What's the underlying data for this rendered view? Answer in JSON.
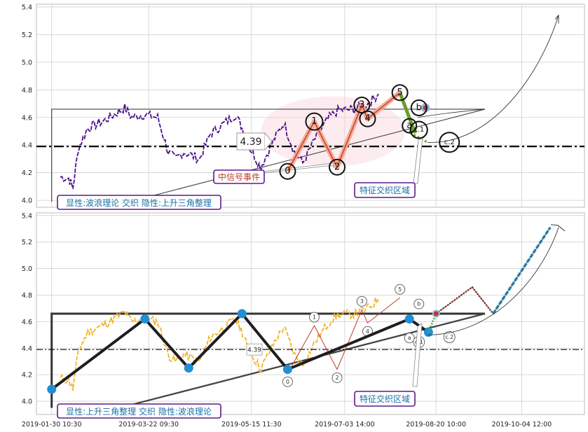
{
  "chart_data": [
    {
      "type": "line",
      "panel": "top",
      "ylim": [
        3.95,
        5.42
      ],
      "yticks": [
        "4.0",
        "4.2",
        "4.4",
        "4.6",
        "4.8",
        "5.0",
        "5.2",
        "5.4"
      ],
      "ytick_values": [
        4.0,
        4.2,
        4.4,
        4.6,
        4.8,
        5.0,
        5.2,
        5.4
      ],
      "grid": true,
      "price_series_color": "#4b0f8a",
      "reference_line": {
        "value": 4.39,
        "label": "4.39",
        "style": "dash-dot"
      },
      "triangle": {
        "top": 4.66,
        "bottom_start": 3.99,
        "color": "#444444"
      },
      "wave_points": [
        {
          "label": "0",
          "x": "2019-06-03",
          "y": 4.21
        },
        {
          "label": "1",
          "x": "2019-06-17",
          "y": 4.57
        },
        {
          "label": "2",
          "x": "2019-06-29",
          "y": 4.24
        },
        {
          "label": "3",
          "x": "2019-07-12",
          "y": 4.69
        },
        {
          "label": "4",
          "x": "2019-07-15",
          "y": 4.59
        },
        {
          "label": "5",
          "x": "2019-08-01",
          "y": 4.78
        },
        {
          "label": "a",
          "x": "2019-08-06",
          "y": 4.54
        },
        {
          "label": "b",
          "x": "2019-08-11",
          "y": 4.67
        },
        {
          "label": "c.1",
          "x": "2019-08-11",
          "y": 4.51
        },
        {
          "label": "c.2",
          "x": "2019-08-27",
          "y": 4.42
        }
      ],
      "annotations": [
        {
          "text": "中信号事件",
          "color": "#c0392b"
        },
        {
          "text": "特征交织区域",
          "color": "#1a6fa8"
        },
        {
          "text": "显性:波浪理论 交织 隐性:上升三角整理",
          "color": "#1a6fa8"
        }
      ]
    },
    {
      "type": "line",
      "panel": "bottom",
      "ylim": [
        3.9,
        5.42
      ],
      "yticks": [
        "4.0",
        "4.2",
        "4.4",
        "4.6",
        "4.8",
        "5.0",
        "5.2",
        "5.4"
      ],
      "ytick_values": [
        4.0,
        4.2,
        4.4,
        4.6,
        4.8,
        5.0,
        5.2,
        5.4
      ],
      "xticks": [
        "2019-01-30 10:30",
        "2019-03-22 09:30",
        "2019-05-15 11:30",
        "2019-07-03 14:00",
        "2019-08-20 10:00",
        "2019-10-04 12:00"
      ],
      "grid": true,
      "price_series_color": "#f0b429",
      "reference_line": {
        "value": 4.39,
        "label": "4.39",
        "style": "dash-dot"
      },
      "triangle_points": [
        {
          "x": "2019-01-30",
          "y": 4.09
        },
        {
          "x": "2019-03-20",
          "y": 4.62
        },
        {
          "x": "2019-04-12",
          "y": 4.25
        },
        {
          "x": "2019-05-10",
          "y": 4.66
        },
        {
          "x": "2019-06-03",
          "y": 4.24
        },
        {
          "x": "2019-08-06",
          "y": 4.62
        },
        {
          "x": "2019-08-16",
          "y": 4.52
        }
      ],
      "projection": [
        {
          "x": "2019-08-20",
          "y": 4.66
        },
        {
          "x": "2019-09-08",
          "y": 4.86
        },
        {
          "x": "2019-09-19",
          "y": 4.66
        },
        {
          "x": "2019-10-19",
          "y": 5.31
        }
      ],
      "annotations": [
        {
          "text": "特征交织区域",
          "color": "#1a6fa8"
        },
        {
          "text": "显性:上升三角整理 交织 隐性:波浪理论",
          "color": "#1a6fa8"
        }
      ]
    }
  ],
  "labels": {
    "top_signal": "中信号事件",
    "top_zone": "特征交织区域",
    "top_caption": "显性:波浪理论 交织 隐性:上升三角整理",
    "bottom_zone": "特征交织区域",
    "bottom_caption": "显性:上升三角整理 交织 隐性:波浪理论",
    "top_ref": "4.39",
    "bottom_ref": "4.39"
  }
}
